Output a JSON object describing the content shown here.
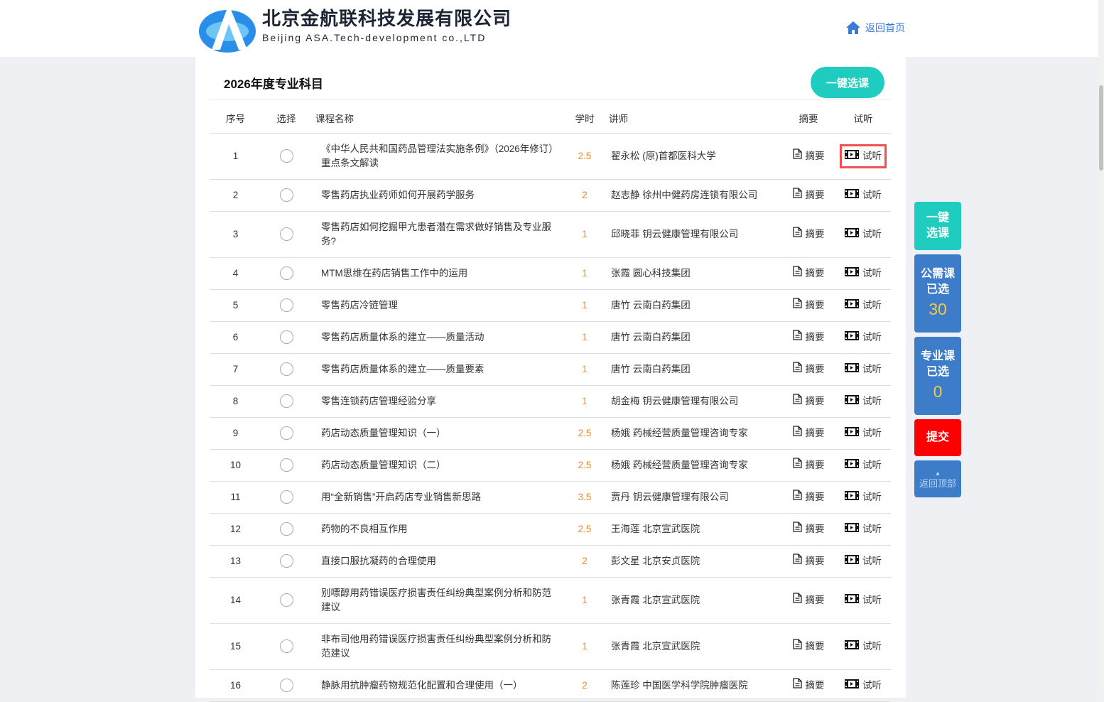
{
  "header": {
    "company_cn": "北京金航联科技发展有限公司",
    "company_en": "Beijing ASA.Tech-development co.,LTD",
    "home_link": "返回首页"
  },
  "main": {
    "title": "2026年度专业科目",
    "one_click_label": "一键选课",
    "columns": [
      "序号",
      "选择",
      "课程名称",
      "学时",
      "讲师",
      "摘要",
      "试听"
    ],
    "summary_label": "摘要",
    "preview_label": "试听",
    "rows": [
      {
        "no": "1",
        "name": "《中华人民共和国药品管理法实施条例》（2026年修订）重点条文解读",
        "hours": "2.5",
        "teacher": "翟永松 (原)首都医科大学"
      },
      {
        "no": "2",
        "name": "零售药店执业药师如何开展药学服务",
        "hours": "2",
        "teacher": "赵志静 徐州中健药房连锁有限公司"
      },
      {
        "no": "3",
        "name": "零售药店如何挖掘甲亢患者潜在需求做好销售及专业服务?",
        "hours": "1",
        "teacher": "邱晓菲 钥云健康管理有限公司"
      },
      {
        "no": "4",
        "name": "MTM思维在药店销售工作中的运用",
        "hours": "1",
        "teacher": "张霞 圆心科技集团"
      },
      {
        "no": "5",
        "name": "零售药店冷链管理",
        "hours": "1",
        "teacher": "唐竹 云南白药集团"
      },
      {
        "no": "6",
        "name": "零售药店质量体系的建立——质量活动",
        "hours": "1",
        "teacher": "唐竹 云南白药集团"
      },
      {
        "no": "7",
        "name": "零售药店质量体系的建立——质量要素",
        "hours": "1",
        "teacher": "唐竹 云南白药集团"
      },
      {
        "no": "8",
        "name": "零售连锁药店管理经验分享",
        "hours": "1",
        "teacher": "胡金梅 钥云健康管理有限公司"
      },
      {
        "no": "9",
        "name": "药店动态质量管理知识（一）",
        "hours": "2.5",
        "teacher": "杨娥 药械经营质量管理咨询专家"
      },
      {
        "no": "10",
        "name": "药店动态质量管理知识（二）",
        "hours": "2.5",
        "teacher": "杨娥 药械经营质量管理咨询专家"
      },
      {
        "no": "11",
        "name": "用“全新销售”开启药店专业销售新思路",
        "hours": "3.5",
        "teacher": "贾丹 钥云健康管理有限公司"
      },
      {
        "no": "12",
        "name": "药物的不良相互作用",
        "hours": "2.5",
        "teacher": "王海莲 北京宣武医院"
      },
      {
        "no": "13",
        "name": "直接口服抗凝药的合理使用",
        "hours": "2",
        "teacher": "彭文星 北京安贞医院"
      },
      {
        "no": "14",
        "name": "别嘌醇用药错误医疗损害责任纠纷典型案例分析和防范建议",
        "hours": "1",
        "teacher": "张青霞 北京宣武医院"
      },
      {
        "no": "15",
        "name": "非布司他用药错误医疗损害责任纠纷典型案例分析和防范建议",
        "hours": "1",
        "teacher": "张青霞 北京宣武医院"
      },
      {
        "no": "16",
        "name": "静脉用抗肿瘤药物规范化配置和合理使用（一）",
        "hours": "2",
        "teacher": "陈莲珍 中国医学科学院肿瘤医院"
      }
    ]
  },
  "sidebar": {
    "one_click": "一键选课",
    "public_label": "公需课已选",
    "public_count": "30",
    "pro_label": "专业课已选",
    "pro_count": "0",
    "submit": "提交",
    "back_top": "返回顶部"
  },
  "colors": {
    "teal": "#1ecdbf",
    "blue": "#3d7cc9",
    "red": "#ff0000",
    "hours": "#f08a24",
    "count": "#f6c945"
  }
}
